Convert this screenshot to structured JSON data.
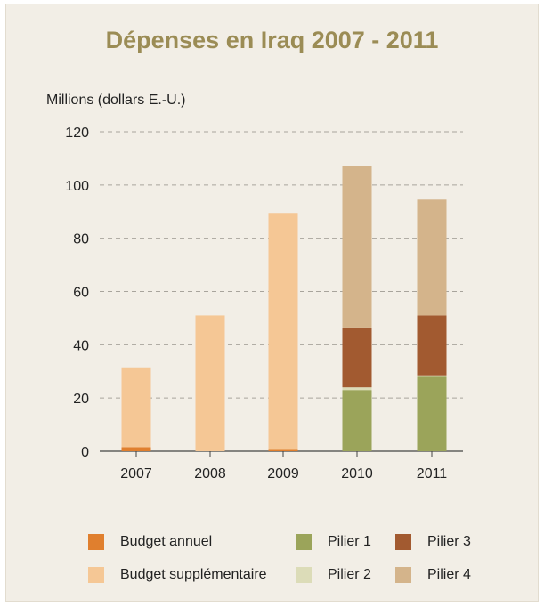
{
  "chart_data": {
    "type": "bar",
    "stacked": true,
    "title": "Dépenses en Iraq 2007 - 2011",
    "ylabel": "Millions (dollars E.-U.)",
    "xlabel": "",
    "ylim": [
      0,
      120
    ],
    "yticks": [
      0,
      20,
      40,
      60,
      80,
      100,
      120
    ],
    "grid": true,
    "legend_position": "bottom",
    "categories": [
      "2007",
      "2008",
      "2009",
      "2010",
      "2011"
    ],
    "series": [
      {
        "name": "Budget annuel",
        "color": "#e07f2e",
        "values": [
          1.5,
          0,
          0.5,
          0,
          0
        ]
      },
      {
        "name": "Budget supplémentaire",
        "color": "#f5c795",
        "values": [
          30,
          51,
          89,
          0,
          0
        ]
      },
      {
        "name": "Pilier 1",
        "color": "#9ba45a",
        "values": [
          0,
          0,
          0,
          23,
          28
        ]
      },
      {
        "name": "Pilier 2",
        "color": "#dcdcb8",
        "values": [
          0,
          0,
          0,
          1,
          0.5
        ]
      },
      {
        "name": "Pilier 3",
        "color": "#a25a30",
        "values": [
          0,
          0,
          0,
          22.5,
          22.5
        ]
      },
      {
        "name": "Pilier 4",
        "color": "#d4b48b",
        "values": [
          0,
          0,
          0,
          60.5,
          43.5
        ]
      }
    ]
  }
}
